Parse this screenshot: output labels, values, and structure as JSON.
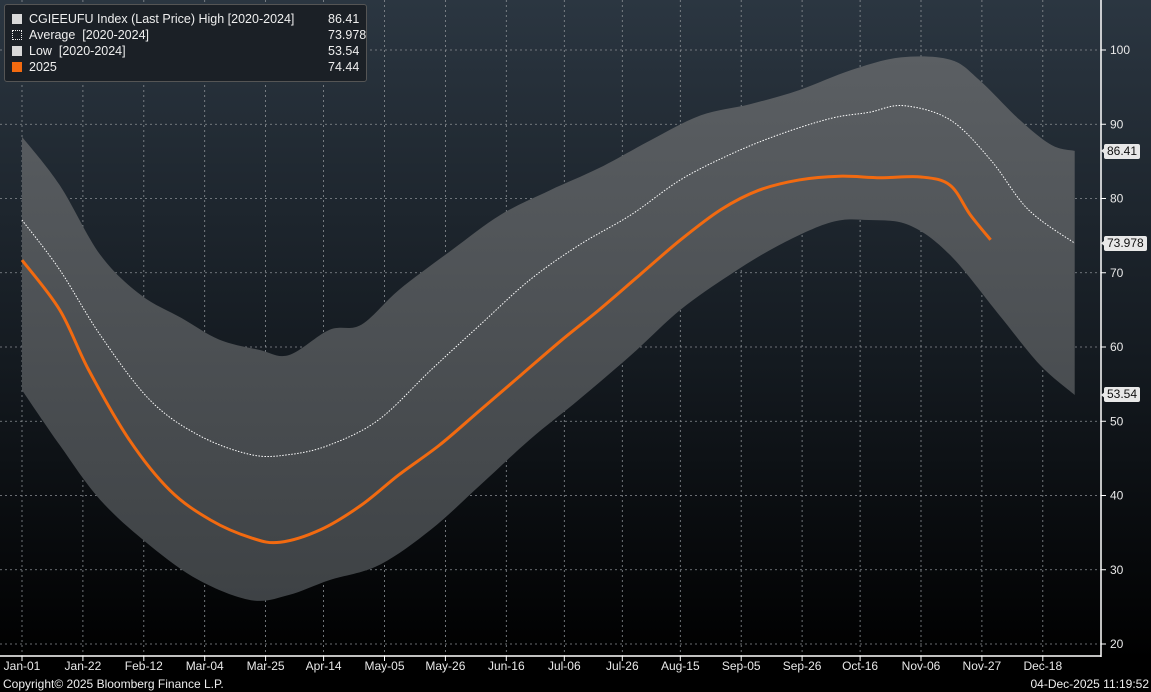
{
  "chart_data": {
    "type": "line",
    "title": "CGIEEUFU Index (Last Price)",
    "x_unit": "day of year",
    "x_tick_labels": [
      "Jan-01",
      "Jan-22",
      "Feb-12",
      "Mar-04",
      "Mar-25",
      "Apr-14",
      "May-05",
      "May-26",
      "Jun-16",
      "Jul-06",
      "Jul-26",
      "Aug-15",
      "Sep-05",
      "Sep-26",
      "Oct-16",
      "Nov-06",
      "Nov-27",
      "Dec-18"
    ],
    "x_tick_days": [
      0,
      21,
      42,
      63,
      84,
      104,
      125,
      146,
      167,
      187,
      207,
      227,
      248,
      269,
      289,
      310,
      331,
      352
    ],
    "ylim": [
      18,
      107
    ],
    "y_ticks": [
      20,
      30,
      40,
      50,
      60,
      70,
      80,
      90,
      100
    ],
    "grid": true,
    "legend_position": "top-left",
    "series": [
      {
        "name": "High [2020-2024]",
        "legend": "CGIEEUFU Index (Last Price) High [2020-2024]",
        "last": "86.41",
        "color": "#d9d9d9",
        "x": [
          0,
          13,
          27,
          41,
          55,
          68,
          82,
          92,
          106,
          117,
          130,
          148,
          165,
          182,
          199,
          217,
          234,
          251,
          268,
          286,
          303,
          320,
          330,
          344,
          355,
          363
        ],
        "y": [
          88.3,
          81.8,
          72.4,
          67,
          63.9,
          61,
          59.6,
          58.9,
          62.3,
          63,
          67.7,
          73,
          77.8,
          81.1,
          84.1,
          87.9,
          91.2,
          92.7,
          94.6,
          97.3,
          99,
          98.7,
          96,
          90.6,
          87.2,
          86.41
        ]
      },
      {
        "name": "Average [2020-2024]",
        "legend": "Average  [2020-2024]",
        "last": "73.978",
        "color": "#ffffff",
        "x": [
          0,
          13,
          27,
          44,
          61,
          79,
          92,
          106,
          123,
          141,
          158,
          175,
          192,
          210,
          227,
          244,
          261,
          279,
          292,
          304,
          320,
          334,
          347,
          363
        ],
        "y": [
          77.1,
          70.4,
          61.6,
          52.9,
          48.1,
          45.5,
          45.5,
          46.8,
          50.2,
          56.9,
          63,
          69,
          73.7,
          77.8,
          82.5,
          85.9,
          88.6,
          90.8,
          91.6,
          92.5,
          90.6,
          85.2,
          78.5,
          73.978
        ]
      },
      {
        "name": "Low [2020-2024]",
        "legend": "Low  [2020-2024]",
        "last": "53.54",
        "color": "#d9d9d9",
        "x": [
          0,
          13,
          27,
          44,
          61,
          79,
          92,
          106,
          123,
          141,
          158,
          175,
          192,
          210,
          227,
          244,
          261,
          279,
          292,
          306,
          320,
          337,
          351,
          363
        ],
        "y": [
          54.2,
          46.8,
          39.4,
          33.3,
          28.6,
          25.9,
          26.6,
          28.6,
          30.6,
          35.4,
          41.4,
          47.5,
          52.9,
          58.9,
          65,
          69.7,
          73.7,
          76.8,
          77.1,
          76.4,
          72.4,
          64.3,
          57.6,
          53.54
        ]
      },
      {
        "name": "2025",
        "legend": "2025",
        "last": "74.44",
        "color": "#f26a10",
        "x": [
          0,
          13,
          23,
          37,
          51,
          65,
          79,
          89,
          103,
          117,
          130,
          144,
          158,
          172,
          186,
          199,
          213,
          227,
          241,
          254,
          268,
          282,
          296,
          310,
          320,
          327,
          334
        ],
        "y": [
          71.7,
          65,
          56.9,
          47.5,
          40.7,
          36.7,
          34.3,
          33.7,
          35.4,
          38.7,
          42.8,
          46.8,
          51.5,
          56.2,
          60.9,
          65,
          69.7,
          74.4,
          78.5,
          81.1,
          82.5,
          83,
          82.8,
          82.9,
          81.8,
          77.8,
          74.44
        ]
      }
    ]
  },
  "footer": {
    "copyright": "Copyright© 2025 Bloomberg Finance L.P.",
    "timestamp": "04-Dec-2025 11:19:52"
  }
}
